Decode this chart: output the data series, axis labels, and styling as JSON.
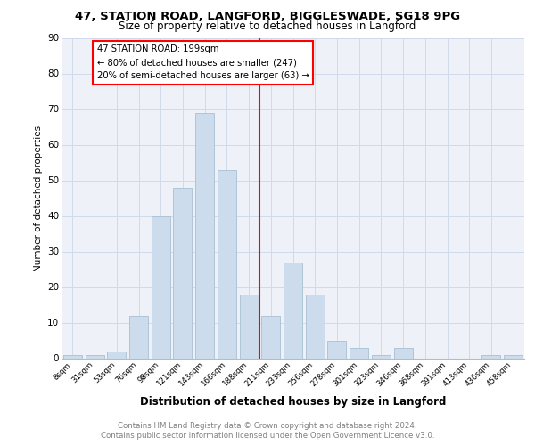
{
  "title": "47, STATION ROAD, LANGFORD, BIGGLESWADE, SG18 9PG",
  "subtitle": "Size of property relative to detached houses in Langford",
  "xlabel": "Distribution of detached houses by size in Langford",
  "ylabel": "Number of detached properties",
  "bar_color": "#ccdcec",
  "bar_edge_color": "#a8c0d4",
  "categories": [
    "8sqm",
    "31sqm",
    "53sqm",
    "76sqm",
    "98sqm",
    "121sqm",
    "143sqm",
    "166sqm",
    "188sqm",
    "211sqm",
    "233sqm",
    "256sqm",
    "278sqm",
    "301sqm",
    "323sqm",
    "346sqm",
    "368sqm",
    "391sqm",
    "413sqm",
    "436sqm",
    "458sqm"
  ],
  "values": [
    1,
    1,
    2,
    12,
    40,
    48,
    69,
    53,
    18,
    12,
    27,
    18,
    5,
    3,
    1,
    3,
    0,
    0,
    0,
    1,
    1
  ],
  "ylim": [
    0,
    90
  ],
  "yticks": [
    0,
    10,
    20,
    30,
    40,
    50,
    60,
    70,
    80,
    90
  ],
  "property_line_x": 8.5,
  "annotation_line1": "47 STATION ROAD: 199sqm",
  "annotation_line2": "← 80% of detached houses are smaller (247)",
  "annotation_line3": "20% of semi-detached houses are larger (63) →",
  "grid_color": "#d0daea",
  "background_color": "#eef2f8",
  "footer1": "Contains HM Land Registry data © Crown copyright and database right 2024.",
  "footer2": "Contains public sector information licensed under the Open Government Licence v3.0."
}
